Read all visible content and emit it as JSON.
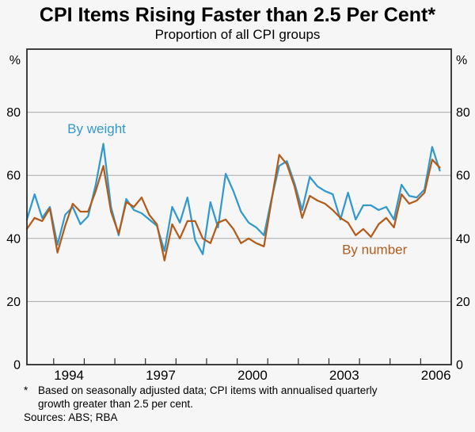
{
  "chart_data": {
    "type": "line",
    "title": "CPI Items Rising Faster than 2.5 Per Cent*",
    "subtitle": "Proportion of all CPI groups",
    "unit": "%",
    "ylim": [
      0,
      100
    ],
    "yticks": [
      20,
      40,
      60,
      80
    ],
    "y_axis_top_label": "%",
    "y_axis_bottom_label": "0",
    "grid": true,
    "xlim_years": [
      1993.125,
      2007.0
    ],
    "xtick_years": [
      1994,
      1995,
      1996,
      1997,
      1998,
      1999,
      2000,
      2001,
      2002,
      2003,
      2004,
      2005,
      2006
    ],
    "xlabel_years": [
      1994,
      1997,
      2000,
      2003,
      2006
    ],
    "periods": [
      "1993 Q1",
      "1993 Q2",
      "1993 Q3",
      "1993 Q4",
      "1994 Q1",
      "1994 Q2",
      "1994 Q3",
      "1994 Q4",
      "1995 Q1",
      "1995 Q2",
      "1995 Q3",
      "1995 Q4",
      "1996 Q1",
      "1996 Q2",
      "1996 Q3",
      "1996 Q4",
      "1997 Q1",
      "1997 Q2",
      "1997 Q3",
      "1997 Q4",
      "1998 Q1",
      "1998 Q2",
      "1998 Q3",
      "1998 Q4",
      "1999 Q1",
      "1999 Q2",
      "1999 Q3",
      "1999 Q4",
      "2000 Q1",
      "2000 Q2",
      "2000 Q3",
      "2000 Q4",
      "2001 Q1",
      "2001 Q2",
      "2001 Q3",
      "2001 Q4",
      "2002 Q1",
      "2002 Q2",
      "2002 Q3",
      "2002 Q4",
      "2003 Q1",
      "2003 Q2",
      "2003 Q3",
      "2003 Q4",
      "2004 Q1",
      "2004 Q2",
      "2004 Q3",
      "2004 Q4",
      "2005 Q1",
      "2005 Q2",
      "2005 Q3",
      "2005 Q4",
      "2006 Q1",
      "2006 Q2",
      "2006 Q3"
    ],
    "series": [
      {
        "name": "By weight",
        "color": "#3399CC",
        "values": [
          46,
          54,
          46.5,
          50,
          38,
          47.5,
          50,
          44.5,
          47,
          57,
          70,
          50,
          41,
          52.5,
          49,
          48,
          46,
          44,
          36,
          50,
          45,
          53,
          39.5,
          35,
          51.5,
          43.5,
          60.5,
          55,
          48.5,
          45,
          43.5,
          41,
          52.5,
          63,
          64.5,
          57.5,
          49,
          59.5,
          56.5,
          55,
          54,
          46,
          54.5,
          46,
          50.5,
          50.5,
          49,
          50,
          46,
          57,
          53.5,
          53,
          55.5,
          69,
          61.5
        ]
      },
      {
        "name": "By number",
        "color": "#B25C1C",
        "values": [
          43,
          46.5,
          45.5,
          49.5,
          35.5,
          44,
          51,
          48.5,
          48.5,
          55,
          63,
          48.5,
          41.5,
          51.5,
          50,
          53,
          47.5,
          44.5,
          33,
          44.5,
          40,
          45.5,
          45.5,
          40,
          38.5,
          45,
          46,
          43,
          38.5,
          40,
          38.5,
          37.5,
          52,
          66.5,
          63.5,
          56.5,
          46.5,
          53.5,
          52,
          51,
          49,
          46.5,
          45,
          41,
          43,
          40.5,
          44.5,
          46.5,
          43.5,
          54,
          51,
          52,
          54.5,
          65,
          62.5
        ]
      }
    ],
    "annotations": [
      {
        "text": "By weight",
        "t": 1994.45,
        "v": 73.4,
        "color": "#3399CC",
        "anchor": "start"
      },
      {
        "text": "By number",
        "t": 2003.43,
        "v": 35.0,
        "color": "#B25C1C",
        "anchor": "start"
      }
    ],
    "legend_position": "inline-annotations"
  },
  "footnote": {
    "marker": "*",
    "line1": "Based on seasonally adjusted data; CPI items with annualised quarterly",
    "line2": "growth greater than 2.5 per cent.",
    "sources": "Sources: ABS; RBA"
  }
}
